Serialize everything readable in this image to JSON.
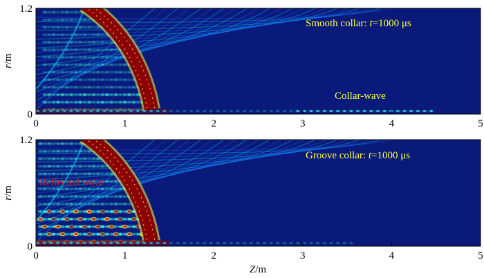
{
  "chart_data": [
    {
      "type": "heatmap",
      "xlabel": "",
      "ylabel_var": "r",
      "ylabel_unit": "/m",
      "xlim": [
        0,
        5
      ],
      "ylim": [
        0,
        1.2
      ],
      "x_ticks": [
        "0",
        "1",
        "2",
        "3",
        "4",
        "5"
      ],
      "y_ticks": [
        "0",
        "1.2"
      ],
      "annotation_title_prefix": "Smooth collar: ",
      "annotation_title_var": "t",
      "annotation_title_suffix": "=1000 μs",
      "annotation_wave": "Collar-wave",
      "background_color": "#0a1a7a",
      "field_colors": [
        "#0a1a7a",
        "#1f4fff",
        "#00d0ff",
        "#ffff3a",
        "#ff3a00",
        "#8b0000"
      ]
    },
    {
      "type": "heatmap",
      "xlabel_var": "Z",
      "xlabel_unit": "/m",
      "ylabel_var": "r",
      "ylabel_unit": "/m",
      "xlim": [
        0,
        5
      ],
      "ylim": [
        0,
        1.2
      ],
      "x_ticks": [
        "0",
        "1",
        "2",
        "3",
        "4",
        "5"
      ],
      "y_ticks": [
        "0",
        "1.2"
      ],
      "annotation_title_prefix": "Groove collar: ",
      "annotation_title_var": "t",
      "annotation_title_suffix": "=1000 μs",
      "annotation_wave": "Reflected wave",
      "background_color": "#0a1a7a",
      "field_colors": [
        "#0a1a7a",
        "#1f4fff",
        "#00d0ff",
        "#ffff3a",
        "#ff3a00",
        "#8b0000"
      ]
    }
  ]
}
